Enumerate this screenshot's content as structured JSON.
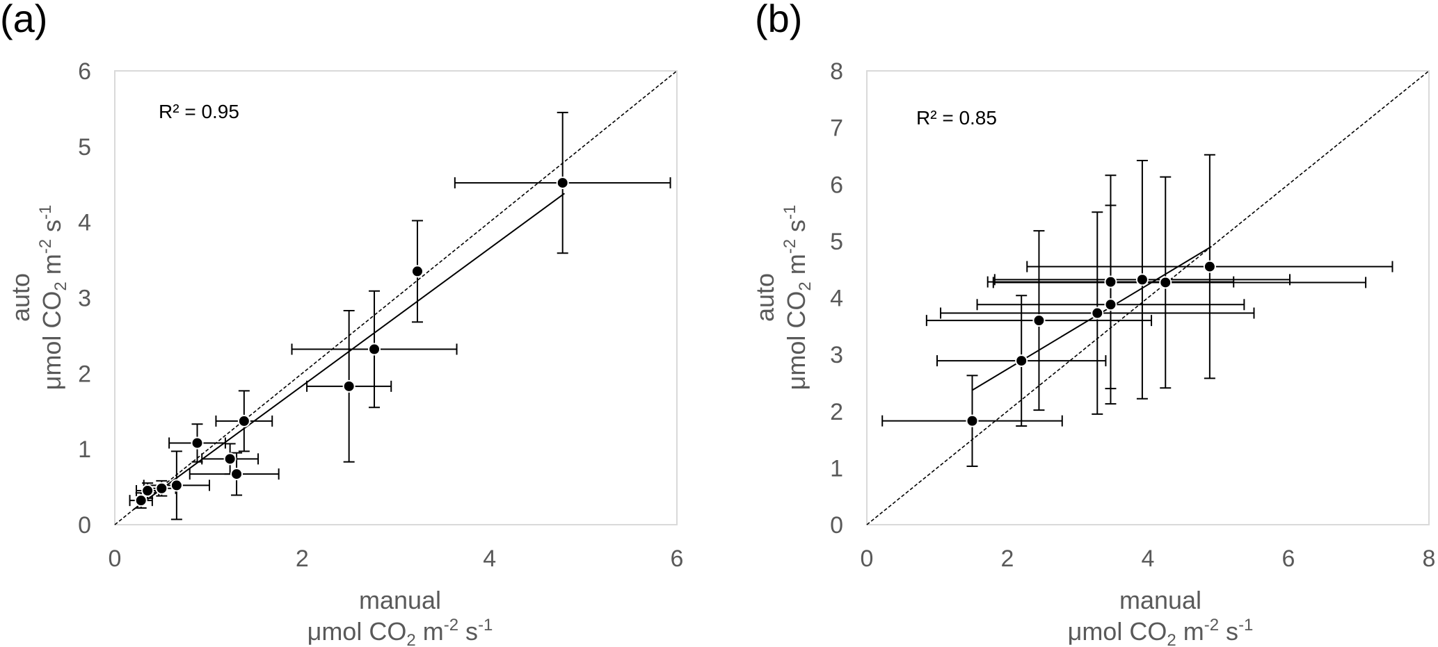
{
  "chart_data": [
    {
      "type": "scatter",
      "panel_label": "(a)",
      "annotation": "R² = 0.95",
      "xlabel": {
        "line1": "manual",
        "line2_prefix": "μmol CO",
        "line2_sub": "2",
        "line2_mid": " m",
        "line2_sup1": "-2",
        "line2_mid2": " s",
        "line2_sup2": "-1"
      },
      "ylabel": {
        "line1": "auto",
        "line2_prefix": "μmol CO",
        "line2_sub": "2",
        "line2_mid": " m",
        "line2_sup1": "-2",
        "line2_mid2": " s",
        "line2_sup2": "-1"
      },
      "xlim": [
        0,
        6
      ],
      "ylim": [
        0,
        6
      ],
      "xticks": [
        0,
        2,
        4,
        6
      ],
      "yticks": [
        0,
        1,
        2,
        3,
        4,
        5,
        6
      ],
      "grid": false,
      "one_to_one_line": true,
      "regression_line": {
        "x": [
          0.2,
          4.8
        ],
        "y": [
          0.2,
          4.38
        ]
      },
      "points": [
        {
          "x": 0.28,
          "y": 0.32,
          "xerr": [
            0.12,
            0.12
          ],
          "yerr": [
            0.1,
            0.1
          ]
        },
        {
          "x": 0.35,
          "y": 0.45,
          "xerr": [
            0.12,
            0.12
          ],
          "yerr": [
            0.1,
            0.1
          ]
        },
        {
          "x": 0.5,
          "y": 0.48,
          "xerr": [
            0.15,
            0.15
          ],
          "yerr": [
            0.1,
            0.1
          ]
        },
        {
          "x": 0.66,
          "y": 0.52,
          "xerr": [
            0.35,
            0.35
          ],
          "yerr": [
            0.45,
            0.45
          ]
        },
        {
          "x": 0.88,
          "y": 1.08,
          "xerr": [
            0.3,
            0.3
          ],
          "yerr": [
            0.25,
            0.25
          ]
        },
        {
          "x": 1.23,
          "y": 0.87,
          "xerr": [
            0.3,
            0.3
          ],
          "yerr": [
            0.2,
            0.2
          ]
        },
        {
          "x": 1.3,
          "y": 0.67,
          "xerr": [
            0.5,
            0.45
          ],
          "yerr": [
            0.28,
            0.28
          ]
        },
        {
          "x": 1.38,
          "y": 1.37,
          "xerr": [
            0.3,
            0.3
          ],
          "yerr": [
            0.4,
            0.4
          ]
        },
        {
          "x": 2.5,
          "y": 1.83,
          "xerr": [
            0.45,
            0.45
          ],
          "yerr": [
            1.0,
            1.0
          ]
        },
        {
          "x": 2.77,
          "y": 2.32,
          "xerr": [
            0.88,
            0.88
          ],
          "yerr": [
            0.77,
            0.77
          ]
        },
        {
          "x": 3.23,
          "y": 3.35,
          "xerr": [
            0.0,
            0.0
          ],
          "yerr": [
            0.67,
            0.67
          ]
        },
        {
          "x": 4.78,
          "y": 4.52,
          "xerr": [
            1.15,
            1.15
          ],
          "yerr": [
            0.93,
            0.93
          ]
        }
      ]
    },
    {
      "type": "scatter",
      "panel_label": "(b)",
      "annotation": "R² = 0.85",
      "xlabel": {
        "line1": "manual",
        "line2_prefix": "μmol CO",
        "line2_sub": "2",
        "line2_mid": " m",
        "line2_sup1": "-2",
        "line2_mid2": " s",
        "line2_sup2": "-1"
      },
      "ylabel": {
        "line1": "auto",
        "line2_prefix": "μmol CO",
        "line2_sub": "2",
        "line2_mid": " m",
        "line2_sup1": "-2",
        "line2_mid2": " s",
        "line2_sup2": "-1"
      },
      "xlim": [
        0,
        8
      ],
      "ylim": [
        0,
        8
      ],
      "xticks": [
        0,
        2,
        4,
        6,
        8
      ],
      "yticks": [
        0,
        1,
        2,
        3,
        4,
        5,
        6,
        7,
        8
      ],
      "grid": false,
      "one_to_one_line": true,
      "regression_line": {
        "x": [
          1.5,
          4.9
        ],
        "y": [
          2.37,
          4.9
        ]
      },
      "points": [
        {
          "x": 1.5,
          "y": 1.83,
          "xerr": [
            1.28,
            1.28
          ],
          "yerr": [
            0.8,
            0.8
          ]
        },
        {
          "x": 2.2,
          "y": 2.89,
          "xerr": [
            1.2,
            1.2
          ],
          "yerr": [
            1.15,
            1.15
          ]
        },
        {
          "x": 2.45,
          "y": 3.6,
          "xerr": [
            1.6,
            1.6
          ],
          "yerr": [
            1.58,
            1.58
          ]
        },
        {
          "x": 3.28,
          "y": 3.73,
          "xerr": [
            2.23,
            2.23
          ],
          "yerr": [
            1.78,
            1.78
          ]
        },
        {
          "x": 3.47,
          "y": 3.88,
          "xerr": [
            1.9,
            1.9
          ],
          "yerr": [
            1.75,
            1.75
          ]
        },
        {
          "x": 3.47,
          "y": 4.28,
          "xerr": [
            1.75,
            1.75
          ],
          "yerr": [
            1.88,
            1.88
          ]
        },
        {
          "x": 3.92,
          "y": 4.32,
          "xerr": [
            2.1,
            2.1
          ],
          "yerr": [
            2.1,
            2.1
          ]
        },
        {
          "x": 4.25,
          "y": 4.27,
          "xerr": [
            2.45,
            2.85
          ],
          "yerr": [
            1.86,
            1.86
          ]
        },
        {
          "x": 4.88,
          "y": 4.55,
          "xerr": [
            2.6,
            2.6
          ],
          "yerr": [
            1.97,
            1.97
          ]
        }
      ]
    }
  ]
}
